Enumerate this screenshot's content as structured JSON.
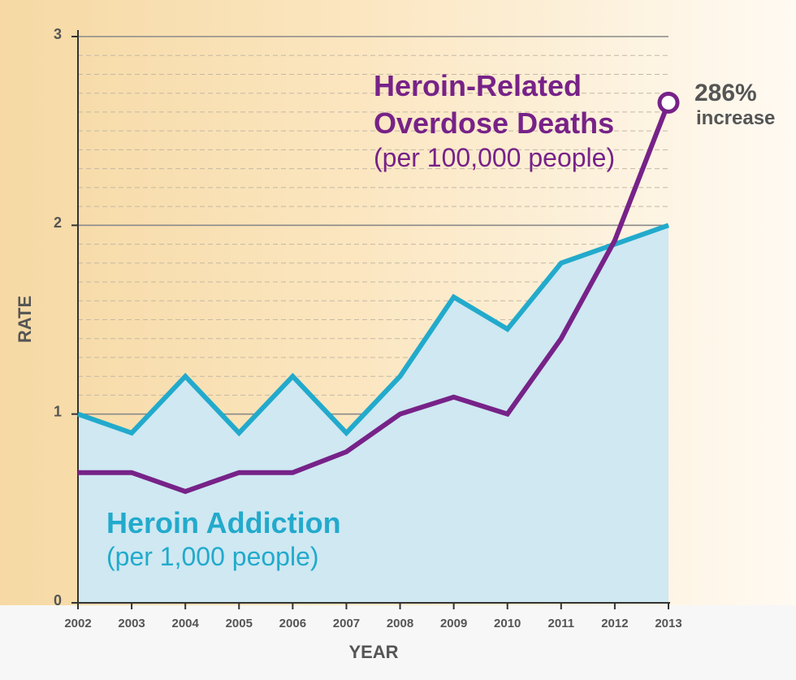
{
  "colors": {
    "addiction": "#22aacc",
    "deaths": "#772288",
    "area_fill": "#cfe8f2",
    "text": "#555555"
  },
  "chart_data": {
    "type": "line",
    "xlabel": "YEAR",
    "ylabel": "RATE",
    "x": [
      "2002",
      "2003",
      "2004",
      "2005",
      "2006",
      "2007",
      "2008",
      "2009",
      "2010",
      "2011",
      "2012",
      "2013"
    ],
    "ylim": [
      0,
      3
    ],
    "yticks": [
      "0",
      "1",
      "2",
      "3"
    ],
    "grid": true,
    "series": [
      {
        "name": "Heroin Addiction",
        "title": "Heroin Addiction",
        "subtitle": "(per 1,000 people)",
        "values": [
          1.0,
          0.9,
          1.2,
          0.9,
          1.2,
          0.9,
          1.2,
          1.62,
          1.45,
          1.8,
          1.9,
          2.0
        ]
      },
      {
        "name": "Heroin-Related Overdose Deaths",
        "title_line1": "Heroin-Related",
        "title_line2": "Overdose Deaths",
        "subtitle": "(per 100,000 people)",
        "values": [
          0.69,
          0.69,
          0.59,
          0.69,
          0.69,
          0.8,
          1.0,
          1.09,
          1.0,
          1.4,
          1.92,
          2.65
        ]
      }
    ],
    "annotation": {
      "value": "286%",
      "text": "increase"
    }
  }
}
